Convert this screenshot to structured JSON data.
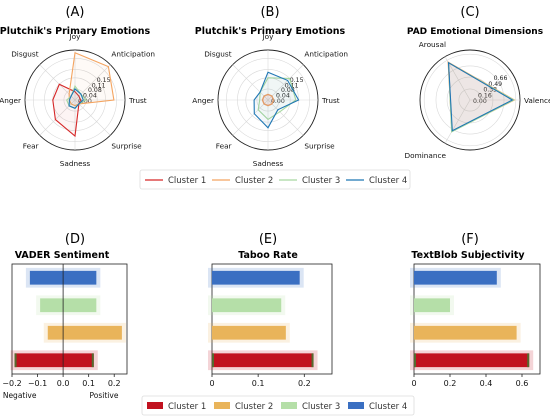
{
  "colors": {
    "cluster1": "#d62728",
    "cluster2": "#f4a460",
    "cluster3": "#a8d8a0",
    "cluster4": "#1f77b4",
    "bar_c1": "#c1121f",
    "bar_c2": "#e9b45a",
    "bar_c3": "#b5dfa8",
    "bar_c4": "#3a6fc2"
  },
  "legends": {
    "radar": [
      "Cluster 1",
      "Cluster 2",
      "Cluster 3",
      "Cluster 4"
    ],
    "bar": [
      "Cluster 1",
      "Cluster 2",
      "Cluster 3",
      "Cluster 4"
    ]
  },
  "chart_data": [
    {
      "panel": "(A)",
      "title": "Plutchik's Primary Emotions",
      "type": "radar",
      "axes": [
        "Joy",
        "Anticipation",
        "Trust",
        "Surprise",
        "Sadness",
        "Fear",
        "Anger",
        "Disgust"
      ],
      "rticks": [
        "0.00",
        "0.04",
        "0.08",
        "0.11",
        "0.15"
      ],
      "rmax": 0.18,
      "series": [
        {
          "name": "Cluster 1",
          "values": [
            0.03,
            0.02,
            0.02,
            0.02,
            0.13,
            0.1,
            0.08,
            0.08
          ]
        },
        {
          "name": "Cluster 2",
          "values": [
            0.17,
            0.17,
            0.14,
            0.02,
            0.02,
            0.02,
            0.02,
            0.03
          ]
        },
        {
          "name": "Cluster 3",
          "values": [
            0.05,
            0.03,
            0.04,
            0.02,
            0.03,
            0.03,
            0.03,
            0.02
          ]
        },
        {
          "name": "Cluster 4",
          "values": [
            0.04,
            0.03,
            0.03,
            0.02,
            0.03,
            0.03,
            0.02,
            0.02
          ]
        }
      ]
    },
    {
      "panel": "(B)",
      "title": "Plutchik's Primary Emotions",
      "type": "radar",
      "axes": [
        "Joy",
        "Anticipation",
        "Trust",
        "Surprise",
        "Sadness",
        "Fear",
        "Anger",
        "Disgust"
      ],
      "rticks": [
        "0.00",
        "0.04",
        "0.08",
        "0.11",
        "0.15"
      ],
      "rmax": 0.18,
      "series": [
        {
          "name": "Cluster 1",
          "values": [
            0.02,
            0.02,
            0.02,
            0.02,
            0.02,
            0.02,
            0.02,
            0.02
          ]
        },
        {
          "name": "Cluster 2",
          "values": [
            0.02,
            0.02,
            0.02,
            0.02,
            0.02,
            0.02,
            0.02,
            0.02
          ]
        },
        {
          "name": "Cluster 3",
          "values": [
            0.08,
            0.11,
            0.1,
            0.06,
            0.07,
            0.05,
            0.03,
            0.04
          ]
        },
        {
          "name": "Cluster 4",
          "values": [
            0.1,
            0.1,
            0.11,
            0.05,
            0.1,
            0.07,
            0.05,
            0.04
          ]
        }
      ]
    },
    {
      "panel": "(C)",
      "title": "PAD Emotional Dimensions",
      "type": "radar",
      "axes": [
        "Arousal",
        "Valence",
        "Dominance"
      ],
      "rticks": [
        "0.00",
        "0.16",
        "0.33",
        "0.49",
        "0.66"
      ],
      "rmax": 0.72,
      "series": [
        {
          "name": "Cluster 1",
          "values": [
            0.62,
            0.62,
            0.52
          ]
        },
        {
          "name": "Cluster 2",
          "values": [
            0.63,
            0.64,
            0.52
          ]
        },
        {
          "name": "Cluster 3",
          "values": [
            0.62,
            0.63,
            0.53
          ]
        },
        {
          "name": "Cluster 4",
          "values": [
            0.62,
            0.61,
            0.51
          ]
        }
      ]
    },
    {
      "panel": "(D)",
      "title": "VADER Sentiment",
      "type": "bar",
      "orientation": "horizontal",
      "categories": [
        "Cluster 1",
        "Cluster 2",
        "Cluster 3",
        "Cluster 4"
      ],
      "values": [
        -0.19,
        -0.06,
        -0.09,
        -0.13
      ],
      "values_end": [
        0.12,
        0.23,
        0.13,
        0.13
      ],
      "xlim": [
        -0.2,
        0.25
      ],
      "xticks": [
        "−0.2",
        "−0.1",
        "0.0",
        "0.1",
        "0.2"
      ],
      "xtick_values": [
        -0.2,
        -0.1,
        0.0,
        0.1,
        0.2
      ],
      "xlabel_left": "Negative",
      "xlabel_right": "Positive",
      "zero_line": 0
    },
    {
      "panel": "(E)",
      "title": "Taboo Rate",
      "type": "bar",
      "orientation": "horizontal",
      "categories": [
        "Cluster 1",
        "Cluster 2",
        "Cluster 3",
        "Cluster 4"
      ],
      "values": [
        0.22,
        0.16,
        0.15,
        0.19
      ],
      "xlim": [
        0,
        0.26
      ],
      "xticks": [
        "0",
        "0.1",
        "0.2"
      ],
      "xtick_values": [
        0,
        0.1,
        0.2
      ]
    },
    {
      "panel": "(F)",
      "title": "TextBlob Subjectivity",
      "type": "bar",
      "orientation": "horizontal",
      "categories": [
        "Cluster 1",
        "Cluster 2",
        "Cluster 3",
        "Cluster 4"
      ],
      "values": [
        0.64,
        0.57,
        0.2,
        0.46
      ],
      "xlim": [
        0,
        0.7
      ],
      "xticks": [
        "0",
        "0.2",
        "0.4",
        "0.6"
      ],
      "xtick_values": [
        0,
        0.2,
        0.4,
        0.6
      ]
    }
  ]
}
